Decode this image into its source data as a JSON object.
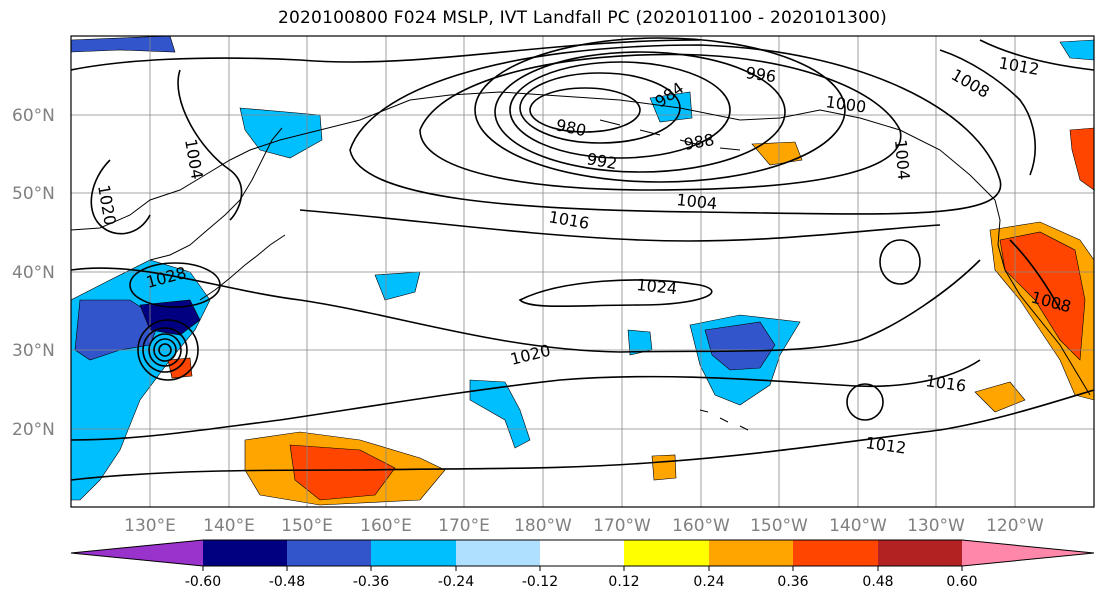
{
  "title": "2020100800 F024 MSLP, IVT Landfall PC (2020101100 - 2020101300)",
  "lat_labels": [
    "60°N",
    "50°N",
    "40°N",
    "30°N",
    "20°N"
  ],
  "lon_labels": [
    "130°E",
    "140°E",
    "150°E",
    "160°E",
    "170°E",
    "180°W",
    "170°W",
    "160°W",
    "150°W",
    "140°W",
    "130°W",
    "120°W"
  ],
  "contour_labels": [
    "996",
    "1012",
    "1008",
    "984",
    "1000",
    "980",
    "988",
    "1004",
    "1004",
    "992",
    "1004",
    "1020",
    "1016",
    "1028",
    "1024",
    "1008",
    "1020",
    "1016",
    "1012"
  ],
  "colorbar": {
    "colors": [
      "#9933cc",
      "#000080",
      "#3355cc",
      "#00bfff",
      "#b0e0ff",
      "#ffffff",
      "#ffff00",
      "#ffa500",
      "#ff4500",
      "#b22222",
      "#ff88aa"
    ],
    "tick_labels": [
      "-0.60",
      "-0.48",
      "-0.36",
      "-0.24",
      "-0.12",
      "0.12",
      "0.24",
      "0.36",
      "0.48",
      "0.60"
    ]
  }
}
